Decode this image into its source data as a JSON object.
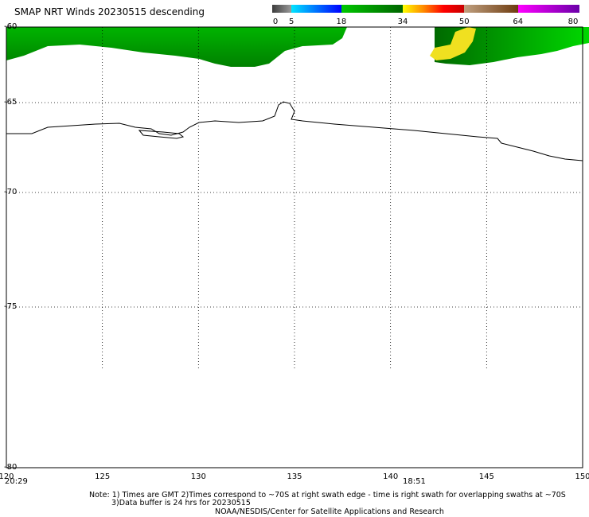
{
  "title": "SMAP NRT Winds  20230515 descending",
  "colorbar": {
    "ticks": [
      "0",
      "5",
      "18",
      "34",
      "50",
      "64",
      "80"
    ],
    "tick_values": [
      0,
      5,
      18,
      34,
      50,
      64,
      80
    ],
    "segments": [
      {
        "from": 0,
        "to": 5,
        "colors": [
          "#3c3c3c",
          "#9a9a9a"
        ]
      },
      {
        "from": 5,
        "to": 18,
        "colors": [
          "#00e5ff",
          "#0000ff"
        ]
      },
      {
        "from": 18,
        "to": 34,
        "colors": [
          "#00c800",
          "#006400"
        ]
      },
      {
        "from": 34,
        "to": 50,
        "colors": [
          "#ffff00",
          "#ff8c00",
          "#ff0000",
          "#c80000"
        ]
      },
      {
        "from": 50,
        "to": 64,
        "colors": [
          "#c0a080",
          "#6e3c10"
        ]
      },
      {
        "from": 64,
        "to": 80,
        "colors": [
          "#ff00ff",
          "#6a00a8"
        ]
      }
    ]
  },
  "axes": {
    "lat_labels": [
      "-60",
      "-65",
      "-70",
      "-75",
      "-80"
    ],
    "lat_values": [
      -60,
      -65,
      -70,
      -75,
      -80
    ],
    "lon_labels": [
      "120",
      "125",
      "130",
      "135",
      "140",
      "145",
      "150"
    ],
    "lon_values": [
      120,
      125,
      130,
      135,
      140,
      145,
      150
    ]
  },
  "times": {
    "left": "20:29",
    "mid": "18:51"
  },
  "notes": {
    "line1": "Note: 1) Times are GMT 2)Times correspond to ~70S at right swath edge - time is right swath for overlapping swaths at ~70S",
    "line2": "3)Data buffer is 24 hrs for 20230515",
    "line3": "NOAA/NESDIS/Center for Satellite Applications and Research"
  },
  "colors": {
    "wind_green_light": "#00c800",
    "wind_green_dark": "#007800",
    "wind_yellow": "#f0e020",
    "grid": "#000000",
    "coast": "#000000"
  }
}
